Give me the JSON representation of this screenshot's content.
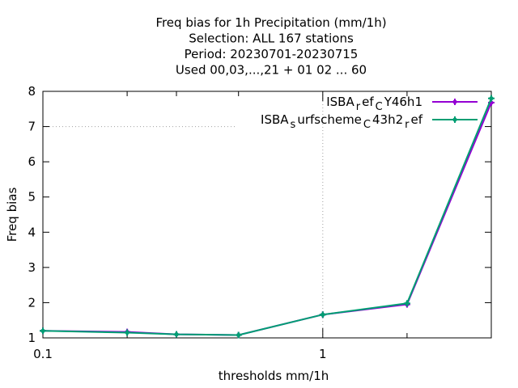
{
  "chart_data": {
    "type": "line",
    "title_lines": [
      "Freq bias  for 1h Precipitation (mm/1h)",
      "Selection: ALL    167 stations",
      "Period: 20230701-20230715",
      "Used  00,03,...,21  + 01 02 ... 60"
    ],
    "xlabel": "thresholds mm/1h",
    "ylabel": "Freq bias",
    "x_scale": "log",
    "xlim": [
      0.1,
      4.0
    ],
    "ylim": [
      1,
      8
    ],
    "x_ticks": [
      0.1,
      0.2,
      0.3,
      0.5,
      1,
      2,
      4
    ],
    "x_tick_labels": [
      {
        "value": 0.1,
        "label": "0.1"
      },
      {
        "value": 1,
        "label": "1"
      }
    ],
    "y_ticks": [
      1,
      2,
      3,
      4,
      5,
      6,
      7,
      8
    ],
    "y_tick_labels": [
      "1",
      "2",
      "3",
      "4",
      "5",
      "6",
      "7",
      "8"
    ],
    "grid": "dotted at x=1 and y=7 only",
    "legend_position": "top-right",
    "x": [
      0.1,
      0.2,
      0.3,
      0.5,
      1,
      2,
      4
    ],
    "series": [
      {
        "legend_parts": [
          "ISBA",
          "r",
          "ef",
          "C",
          "Y46h1"
        ],
        "color": "#9400d3",
        "values": [
          1.2,
          1.17,
          1.1,
          1.08,
          1.66,
          1.95,
          7.68
        ]
      },
      {
        "legend_parts": [
          "ISBA",
          "s",
          "urfscheme",
          "C",
          "43h2",
          "r",
          "ef"
        ],
        "color": "#009e73",
        "values": [
          1.2,
          1.15,
          1.1,
          1.08,
          1.66,
          1.98,
          7.8
        ]
      }
    ]
  }
}
